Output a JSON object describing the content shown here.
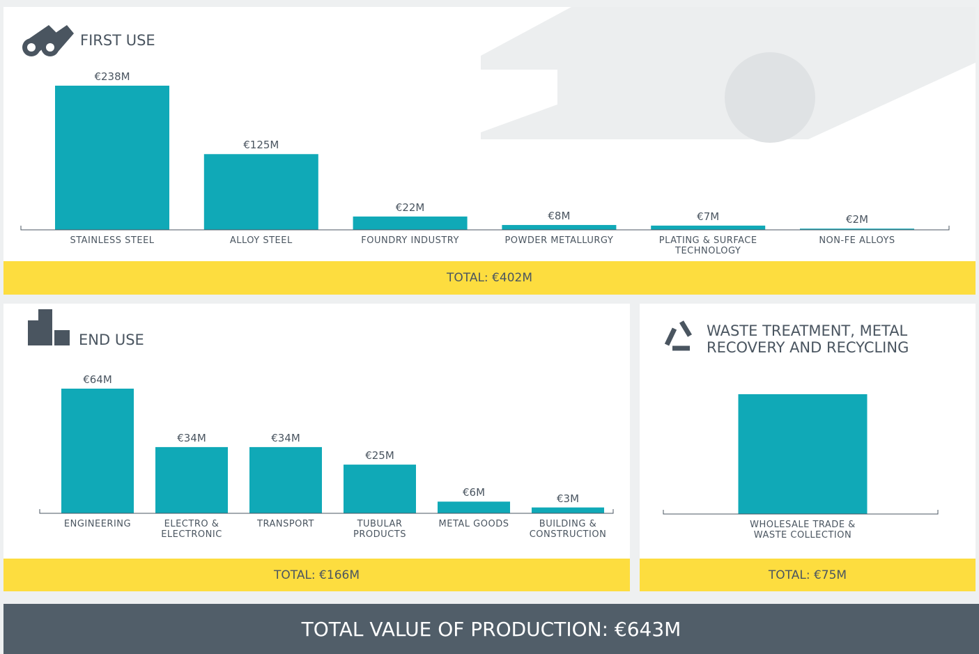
{
  "chart_data": [
    {
      "type": "bar",
      "title": "FIRST USE",
      "color": "#10a9b7",
      "categories": [
        "STAINLESS STEEL",
        "ALLOY STEEL",
        "FOUNDRY INDUSTRY",
        "POWDER METALLURGY",
        "PLATING & SURFACE TECHNOLOGY",
        "NON-FE ALLOYS"
      ],
      "values": [
        238,
        125,
        22,
        8,
        7,
        2
      ],
      "value_labels": [
        "€238M",
        "€125M",
        "€22M",
        "€8M",
        "€7M",
        "€2M"
      ],
      "total": "TOTAL: €402M"
    },
    {
      "type": "bar",
      "title": "END USE",
      "color": "#10a9b7",
      "categories": [
        "ENGINEERING",
        "ELECTRO & ELECTRONIC",
        "TRANSPORT",
        "TUBULAR PRODUCTS",
        "METAL GOODS",
        "BUILDING & CONSTRUCTION"
      ],
      "values": [
        64,
        34,
        34,
        25,
        6,
        3
      ],
      "value_labels": [
        "€64M",
        "€34M",
        "€34M",
        "€25M",
        "€6M",
        "€3M"
      ],
      "total": "TOTAL: €166M"
    },
    {
      "type": "bar",
      "title": "WASTE TREATMENT, METAL RECOVERY AND RECYCLING",
      "color": "#10a9b7",
      "categories": [
        "WHOLESALE TRADE & WASTE COLLECTION"
      ],
      "values": [
        75
      ],
      "total": "TOTAL: €75M"
    }
  ],
  "footer": "TOTAL VALUE OF PRODUCTION: €643M"
}
